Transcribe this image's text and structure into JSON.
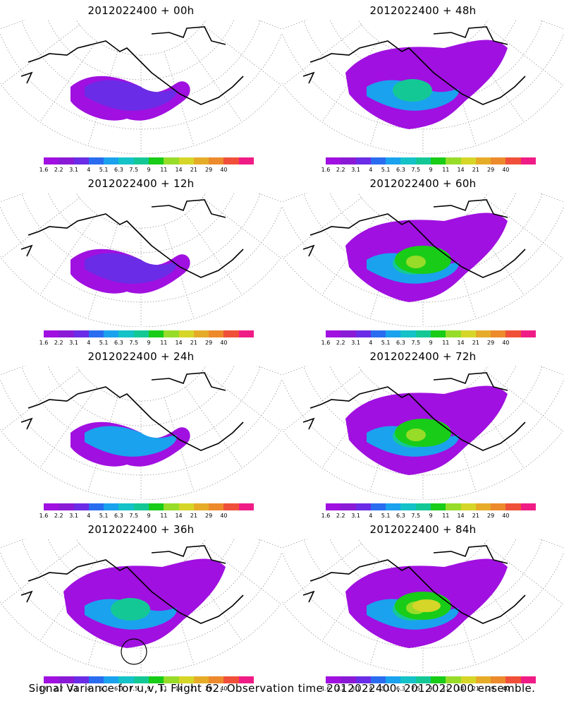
{
  "panels": [
    {
      "title": "2012022400 + 00h",
      "lead": "00h"
    },
    {
      "title": "2012022400 + 48h",
      "lead": "48h"
    },
    {
      "title": "2012022400 + 12h",
      "lead": "12h"
    },
    {
      "title": "2012022400 + 60h",
      "lead": "60h"
    },
    {
      "title": "2012022400 + 24h",
      "lead": "24h"
    },
    {
      "title": "2012022400 + 72h",
      "lead": "72h"
    },
    {
      "title": "2012022400 + 36h",
      "lead": "36h"
    },
    {
      "title": "2012022400 + 84h",
      "lead": "84h"
    }
  ],
  "colorbar": {
    "labels": [
      "1.6",
      "2.2",
      "3.1",
      "4",
      "5.1",
      "6.3",
      "7.5",
      "9",
      "11",
      "14",
      "21",
      "29",
      "40"
    ],
    "colors": [
      "#a010e0",
      "#8a1ad6",
      "#6a2ce6",
      "#2a6cf0",
      "#1aa2ee",
      "#14c2c8",
      "#14c896",
      "#18cc18",
      "#96dc28",
      "#d6d628",
      "#e6ac28",
      "#ec8a2c",
      "#f0503a",
      "#f01c86"
    ]
  },
  "footer": "Signal Variance for u,v,T. Flight 62. Observation time 2012022400. 2012022000 ensemble."
}
